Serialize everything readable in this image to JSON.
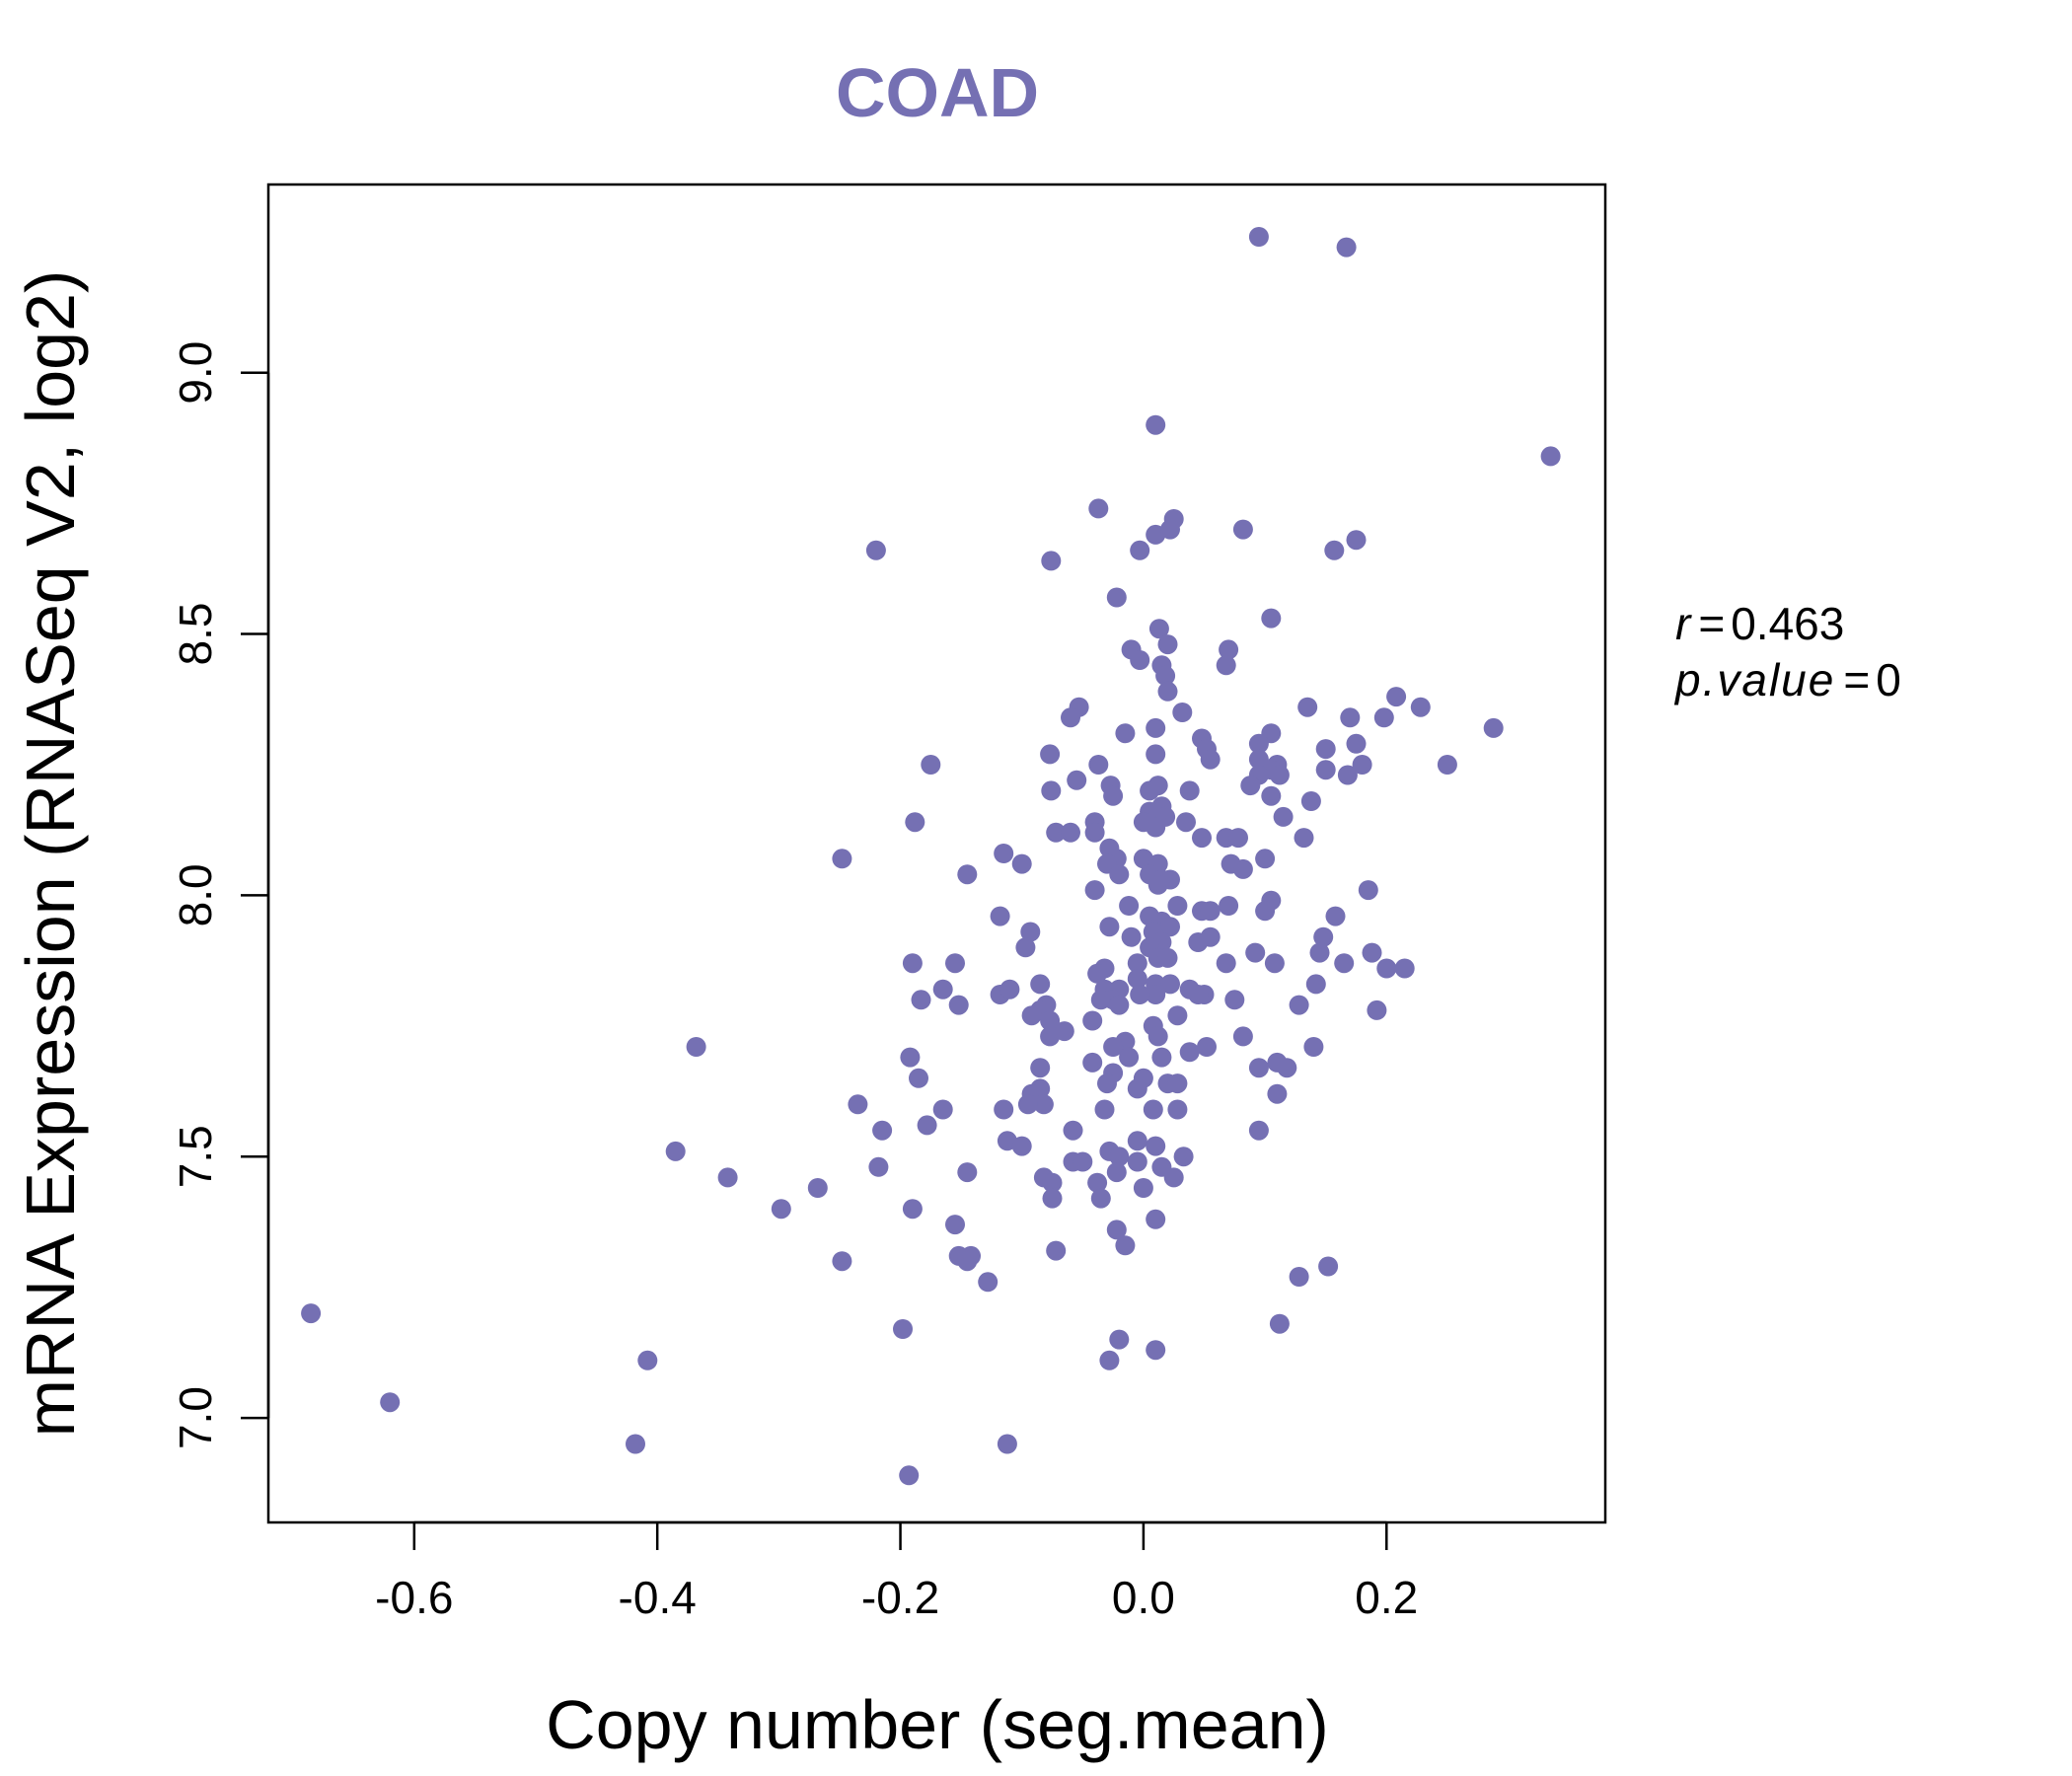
{
  "chart_data": {
    "type": "scatter",
    "title": "COAD",
    "xlabel": "Copy number (seg.mean)",
    "ylabel": "mRNA Expression (RNASeq V2, log2)",
    "xlim": [
      -0.72,
      0.38
    ],
    "ylim": [
      6.8,
      9.36
    ],
    "x_ticks": [
      -0.6,
      -0.4,
      -0.2,
      0.0,
      0.2
    ],
    "x_tick_labels": [
      "-0.6",
      "-0.4",
      "-0.2",
      "0.0",
      "0.2"
    ],
    "y_ticks": [
      7.0,
      7.5,
      8.0,
      8.5,
      9.0
    ],
    "y_tick_labels": [
      "7.0",
      "7.5",
      "8.0",
      "8.5",
      "9.0"
    ],
    "grid": false,
    "point_color": "#7570b3",
    "title_color": "#7570b3",
    "annotation": {
      "r_label": "r",
      "r_value": "0.463",
      "p_label": "p.value",
      "p_value": "0"
    },
    "points": [
      [
        0.095,
        9.26
      ],
      [
        0.167,
        9.24
      ],
      [
        0.01,
        8.9
      ],
      [
        0.335,
        8.84
      ],
      [
        -0.037,
        8.74
      ],
      [
        0.025,
        8.72
      ],
      [
        0.082,
        8.7
      ],
      [
        0.01,
        8.69
      ],
      [
        0.022,
        8.7
      ],
      [
        0.175,
        8.68
      ],
      [
        0.157,
        8.66
      ],
      [
        -0.003,
        8.66
      ],
      [
        -0.22,
        8.66
      ],
      [
        -0.076,
        8.64
      ],
      [
        -0.022,
        8.57
      ],
      [
        0.105,
        8.53
      ],
      [
        0.013,
        8.51
      ],
      [
        -0.01,
        8.47
      ],
      [
        0.07,
        8.47
      ],
      [
        0.02,
        8.48
      ],
      [
        -0.003,
        8.45
      ],
      [
        0.015,
        8.44
      ],
      [
        0.068,
        8.44
      ],
      [
        0.018,
        8.42
      ],
      [
        0.02,
        8.39
      ],
      [
        0.208,
        8.38
      ],
      [
        -0.053,
        8.36
      ],
      [
        0.135,
        8.36
      ],
      [
        0.228,
        8.36
      ],
      [
        0.032,
        8.35
      ],
      [
        -0.06,
        8.34
      ],
      [
        0.198,
        8.34
      ],
      [
        0.17,
        8.34
      ],
      [
        0.01,
        8.32
      ],
      [
        0.288,
        8.32
      ],
      [
        -0.015,
        8.31
      ],
      [
        0.105,
        8.31
      ],
      [
        0.048,
        8.3
      ],
      [
        0.095,
        8.29
      ],
      [
        0.175,
        8.29
      ],
      [
        0.052,
        8.28
      ],
      [
        0.15,
        8.28
      ],
      [
        -0.077,
        8.27
      ],
      [
        0.01,
        8.27
      ],
      [
        0.055,
        8.26
      ],
      [
        0.095,
        8.26
      ],
      [
        0.11,
        8.25
      ],
      [
        -0.037,
        8.25
      ],
      [
        -0.175,
        8.25
      ],
      [
        0.25,
        8.25
      ],
      [
        0.18,
        8.25
      ],
      [
        0.105,
        8.24
      ],
      [
        0.095,
        8.23
      ],
      [
        0.112,
        8.23
      ],
      [
        0.15,
        8.24
      ],
      [
        0.168,
        8.23
      ],
      [
        -0.055,
        8.22
      ],
      [
        -0.027,
        8.21
      ],
      [
        0.012,
        8.21
      ],
      [
        -0.076,
        8.2
      ],
      [
        0.088,
        8.21
      ],
      [
        0.038,
        8.2
      ],
      [
        0.005,
        8.2
      ],
      [
        -0.025,
        8.19
      ],
      [
        0.105,
        8.19
      ],
      [
        0.138,
        8.18
      ],
      [
        0.015,
        8.17
      ],
      [
        0.005,
        8.16
      ],
      [
        -0.188,
        8.14
      ],
      [
        -0.04,
        8.14
      ],
      [
        0.0,
        8.14
      ],
      [
        0.035,
        8.14
      ],
      [
        0.018,
        8.15
      ],
      [
        0.115,
        8.15
      ],
      [
        0.01,
        8.13
      ],
      [
        -0.072,
        8.12
      ],
      [
        -0.06,
        8.12
      ],
      [
        -0.04,
        8.12
      ],
      [
        0.048,
        8.11
      ],
      [
        0.068,
        8.11
      ],
      [
        0.078,
        8.11
      ],
      [
        0.132,
        8.11
      ],
      [
        -0.028,
        8.09
      ],
      [
        -0.115,
        8.08
      ],
      [
        -0.022,
        8.07
      ],
      [
        -0.248,
        8.07
      ],
      [
        0.0,
        8.07
      ],
      [
        0.012,
        8.06
      ],
      [
        0.1,
        8.07
      ],
      [
        -0.1,
        8.06
      ],
      [
        -0.03,
        8.06
      ],
      [
        0.072,
        8.06
      ],
      [
        0.082,
        8.05
      ],
      [
        -0.145,
        8.04
      ],
      [
        -0.02,
        8.04
      ],
      [
        0.005,
        8.04
      ],
      [
        0.015,
        8.03
      ],
      [
        0.022,
        8.03
      ],
      [
        -0.04,
        8.01
      ],
      [
        0.012,
        8.02
      ],
      [
        0.185,
        8.01
      ],
      [
        0.105,
        7.99
      ],
      [
        -0.012,
        7.98
      ],
      [
        0.028,
        7.98
      ],
      [
        0.07,
        7.98
      ],
      [
        0.1,
        7.97
      ],
      [
        0.048,
        7.97
      ],
      [
        0.055,
        7.97
      ],
      [
        -0.118,
        7.96
      ],
      [
        0.005,
        7.96
      ],
      [
        0.158,
        7.96
      ],
      [
        0.015,
        7.95
      ],
      [
        -0.028,
        7.94
      ],
      [
        0.022,
        7.94
      ],
      [
        0.008,
        7.93
      ],
      [
        -0.093,
        7.93
      ],
      [
        0.148,
        7.92
      ],
      [
        -0.01,
        7.92
      ],
      [
        0.055,
        7.92
      ],
      [
        0.015,
        7.91
      ],
      [
        0.045,
        7.91
      ],
      [
        -0.097,
        7.9
      ],
      [
        0.005,
        7.9
      ],
      [
        0.092,
        7.89
      ],
      [
        0.188,
        7.89
      ],
      [
        0.145,
        7.89
      ],
      [
        0.012,
        7.88
      ],
      [
        0.02,
        7.88
      ],
      [
        0.068,
        7.87
      ],
      [
        -0.005,
        7.87
      ],
      [
        -0.19,
        7.87
      ],
      [
        -0.155,
        7.87
      ],
      [
        0.108,
        7.87
      ],
      [
        0.165,
        7.87
      ],
      [
        0.2,
        7.86
      ],
      [
        0.215,
        7.86
      ],
      [
        -0.032,
        7.86
      ],
      [
        -0.038,
        7.85
      ],
      [
        -0.005,
        7.84
      ],
      [
        0.01,
        7.83
      ],
      [
        -0.085,
        7.83
      ],
      [
        -0.165,
        7.82
      ],
      [
        0.142,
        7.83
      ],
      [
        0.022,
        7.83
      ],
      [
        0.038,
        7.82
      ],
      [
        -0.032,
        7.82
      ],
      [
        -0.02,
        7.82
      ],
      [
        -0.118,
        7.81
      ],
      [
        -0.11,
        7.82
      ],
      [
        0.05,
        7.81
      ],
      [
        0.01,
        7.81
      ],
      [
        -0.003,
        7.81
      ],
      [
        0.045,
        7.81
      ],
      [
        -0.025,
        7.8
      ],
      [
        0.075,
        7.8
      ],
      [
        -0.183,
        7.8
      ],
      [
        -0.035,
        7.8
      ],
      [
        -0.02,
        7.79
      ],
      [
        -0.08,
        7.79
      ],
      [
        -0.152,
        7.79
      ],
      [
        0.128,
        7.79
      ],
      [
        -0.085,
        7.78
      ],
      [
        -0.092,
        7.77
      ],
      [
        0.028,
        7.77
      ],
      [
        0.192,
        7.78
      ],
      [
        -0.077,
        7.76
      ],
      [
        -0.042,
        7.76
      ],
      [
        0.008,
        7.75
      ],
      [
        -0.065,
        7.74
      ],
      [
        -0.077,
        7.73
      ],
      [
        0.012,
        7.73
      ],
      [
        -0.015,
        7.72
      ],
      [
        0.082,
        7.73
      ],
      [
        -0.368,
        7.71
      ],
      [
        -0.025,
        7.71
      ],
      [
        0.052,
        7.71
      ],
      [
        0.14,
        7.71
      ],
      [
        0.038,
        7.7
      ],
      [
        -0.192,
        7.69
      ],
      [
        -0.012,
        7.69
      ],
      [
        0.015,
        7.69
      ],
      [
        0.11,
        7.68
      ],
      [
        -0.042,
        7.68
      ],
      [
        0.118,
        7.67
      ],
      [
        -0.085,
        7.67
      ],
      [
        0.095,
        7.67
      ],
      [
        -0.025,
        7.66
      ],
      [
        -0.185,
        7.65
      ],
      [
        0.0,
        7.65
      ],
      [
        -0.03,
        7.64
      ],
      [
        0.02,
        7.64
      ],
      [
        0.028,
        7.64
      ],
      [
        -0.085,
        7.63
      ],
      [
        -0.092,
        7.62
      ],
      [
        -0.005,
        7.63
      ],
      [
        0.11,
        7.62
      ],
      [
        -0.235,
        7.6
      ],
      [
        -0.082,
        7.6
      ],
      [
        -0.095,
        7.6
      ],
      [
        -0.032,
        7.59
      ],
      [
        0.008,
        7.59
      ],
      [
        0.028,
        7.59
      ],
      [
        -0.165,
        7.59
      ],
      [
        -0.115,
        7.59
      ],
      [
        -0.178,
        7.56
      ],
      [
        -0.058,
        7.55
      ],
      [
        0.095,
        7.55
      ],
      [
        -0.215,
        7.55
      ],
      [
        -0.112,
        7.53
      ],
      [
        -0.005,
        7.53
      ],
      [
        0.01,
        7.52
      ],
      [
        -0.1,
        7.52
      ],
      [
        -0.028,
        7.51
      ],
      [
        -0.385,
        7.51
      ],
      [
        -0.02,
        7.5
      ],
      [
        0.033,
        7.5
      ],
      [
        -0.058,
        7.49
      ],
      [
        -0.05,
        7.49
      ],
      [
        -0.005,
        7.49
      ],
      [
        0.015,
        7.48
      ],
      [
        -0.218,
        7.48
      ],
      [
        -0.145,
        7.47
      ],
      [
        -0.022,
        7.47
      ],
      [
        0.025,
        7.46
      ],
      [
        -0.082,
        7.46
      ],
      [
        -0.342,
        7.46
      ],
      [
        -0.038,
        7.45
      ],
      [
        -0.075,
        7.45
      ],
      [
        -0.268,
        7.44
      ],
      [
        0.0,
        7.44
      ],
      [
        -0.035,
        7.42
      ],
      [
        -0.075,
        7.42
      ],
      [
        -0.298,
        7.4
      ],
      [
        -0.19,
        7.4
      ],
      [
        0.01,
        7.38
      ],
      [
        -0.155,
        7.37
      ],
      [
        -0.022,
        7.36
      ],
      [
        -0.015,
        7.33
      ],
      [
        -0.072,
        7.32
      ],
      [
        -0.152,
        7.31
      ],
      [
        -0.142,
        7.31
      ],
      [
        -0.145,
        7.3
      ],
      [
        -0.248,
        7.3
      ],
      [
        0.152,
        7.29
      ],
      [
        0.128,
        7.27
      ],
      [
        -0.128,
        7.26
      ],
      [
        -0.685,
        7.2
      ],
      [
        0.112,
        7.18
      ],
      [
        -0.198,
        7.17
      ],
      [
        -0.02,
        7.15
      ],
      [
        0.01,
        7.13
      ],
      [
        -0.408,
        7.11
      ],
      [
        -0.028,
        7.11
      ],
      [
        -0.62,
        7.03
      ],
      [
        -0.418,
        6.95
      ],
      [
        -0.112,
        6.95
      ],
      [
        -0.193,
        6.89
      ]
    ]
  }
}
